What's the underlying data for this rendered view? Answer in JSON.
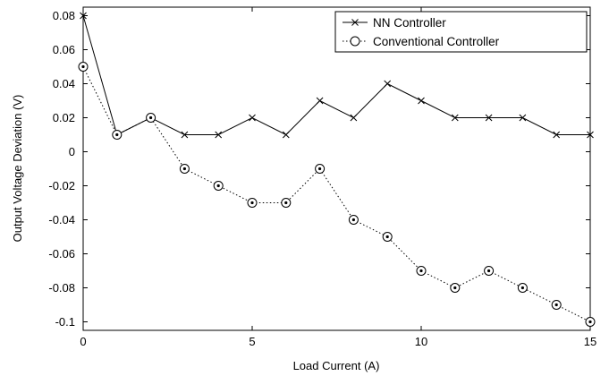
{
  "chart_data": {
    "type": "line",
    "xlabel": "Load Current (A)",
    "ylabel": "Output Voltage Deviation (V)",
    "xlim": [
      0,
      15
    ],
    "ylim": [
      -0.105,
      0.085
    ],
    "xticks": [
      0,
      5,
      10,
      15
    ],
    "yticks": [
      0.08,
      0.06,
      0.04,
      0.02,
      0,
      -0.02,
      -0.04,
      -0.06,
      -0.08,
      -0.1
    ],
    "xtick_labels": [
      "0",
      "5",
      "10",
      "15"
    ],
    "ytick_labels": [
      "0.08",
      "0.06",
      "0.04",
      "0.02",
      "0",
      "-0.02",
      "-0.04",
      "-0.06",
      "-0.08",
      "-0.1"
    ],
    "grid": false,
    "legend_position": "top-right",
    "x": [
      0,
      1,
      2,
      3,
      4,
      5,
      6,
      7,
      8,
      9,
      10,
      11,
      12,
      13,
      14,
      15
    ],
    "series": [
      {
        "name": "NN Controller",
        "marker": "x",
        "line_style": "solid",
        "color": "#000000",
        "values": [
          0.08,
          0.01,
          0.02,
          0.01,
          0.01,
          0.02,
          0.01,
          0.03,
          0.02,
          0.04,
          0.03,
          0.02,
          0.02,
          0.02,
          0.01,
          0.01
        ]
      },
      {
        "name": "Conventional Controller",
        "marker": "circle",
        "line_style": "dotted",
        "color": "#000000",
        "values": [
          0.05,
          0.01,
          0.02,
          -0.01,
          -0.02,
          -0.03,
          -0.03,
          -0.01,
          -0.04,
          -0.05,
          -0.07,
          -0.08,
          -0.07,
          -0.08,
          -0.09,
          -0.1
        ]
      }
    ]
  }
}
